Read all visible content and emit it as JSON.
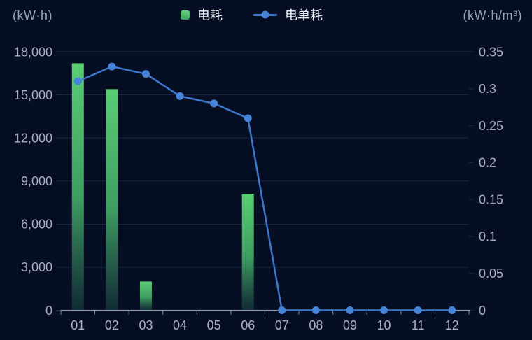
{
  "header": {
    "left_axis_unit": "(kW·h)",
    "right_axis_unit": "(kW·h/m³)",
    "legend": [
      {
        "label": "电耗",
        "marker": "bar-swatch",
        "color": "#5BCD74"
      },
      {
        "label": "电单耗",
        "marker": "line-dot",
        "color": "#4584D9"
      }
    ]
  },
  "chart_data": {
    "type": "combo-bar-line",
    "categories": [
      "01",
      "02",
      "03",
      "04",
      "05",
      "06",
      "07",
      "08",
      "09",
      "10",
      "11",
      "12"
    ],
    "series": [
      {
        "name": "电耗",
        "type": "bar",
        "y_axis": "left",
        "color": "#5BCD74",
        "values": [
          17200,
          15400,
          2000,
          0,
          0,
          8100,
          0,
          0,
          0,
          0,
          0,
          0
        ]
      },
      {
        "name": "电单耗",
        "type": "line",
        "y_axis": "right",
        "color": "#3D78CC",
        "values": [
          0.31,
          0.33,
          0.32,
          0.29,
          0.28,
          0.26,
          0,
          0,
          0,
          0,
          0,
          0
        ]
      }
    ],
    "left_axis": {
      "unit": "(kW·h)",
      "min": 0,
      "max": 18000,
      "tick_step": 3000,
      "tick_labels": [
        "0",
        "3,000",
        "6,000",
        "9,000",
        "12,000",
        "15,000",
        "18,000"
      ]
    },
    "right_axis": {
      "unit": "(kW·h/m³)",
      "min": 0,
      "max": 0.35,
      "tick_step": 0.05,
      "tick_labels": [
        "0",
        "0.05",
        "0.1",
        "0.15",
        "0.2",
        "0.25",
        "0.3",
        "0.35"
      ]
    },
    "x_axis": {
      "tick_labels": [
        "01",
        "02",
        "03",
        "04",
        "05",
        "06",
        "07",
        "08",
        "09",
        "10",
        "11",
        "12"
      ]
    },
    "grid": "horizontal-only",
    "legend_position": "top-center"
  },
  "colors": {
    "background": "#060E24",
    "grid_line": "#1B2947",
    "axis_line": "#8A93A4",
    "tick_label": "#A7AEBD",
    "unit_label": "#99A2B4",
    "legend_text": "#F0F4FA",
    "bar_gradient_top": "#5ACD74",
    "bar_gradient_mid": "#3E9C61",
    "bar_gradient_bottom": "#133038",
    "line": "#3D78CC",
    "dot": "#4584D9"
  }
}
